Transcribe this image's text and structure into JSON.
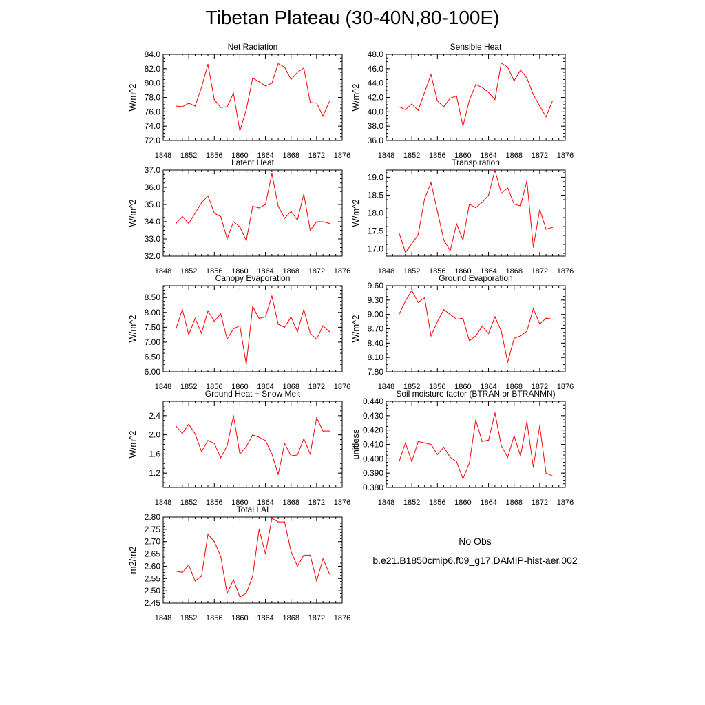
{
  "page": {
    "title": "Tibetan Plateau (30-40N,80-100E)"
  },
  "legend": {
    "items": [
      {
        "label": "No Obs",
        "color": "#3333aa",
        "style": "dashed"
      },
      {
        "label": "b.e21.B1850cmip6.f09_g17.DAMIP-hist-aer.002",
        "color": "#ff0000",
        "style": "solid"
      }
    ]
  },
  "chart_data": [
    {
      "type": "line",
      "title": "Net Radiation",
      "xlabel": "",
      "ylabel": "W/m^2",
      "xlim": [
        1848,
        1876
      ],
      "xticks": [
        "1848",
        "1852",
        "1856",
        "1860",
        "1864",
        "1868",
        "1872",
        "1876"
      ],
      "ylim": [
        72.0,
        84.0
      ],
      "yticks": [
        "72.0",
        "74.0",
        "76.0",
        "78.0",
        "80.0",
        "82.0",
        "84.0"
      ],
      "x": [
        1850,
        1851,
        1852,
        1853,
        1854,
        1855,
        1856,
        1857,
        1858,
        1859,
        1860,
        1861,
        1862,
        1863,
        1864,
        1865,
        1866,
        1867,
        1868,
        1869,
        1870,
        1871,
        1872,
        1873,
        1874
      ],
      "series": [
        {
          "name": "b.e21.B1850cmip6.f09_g17.DAMIP-hist-aer.002",
          "color": "#ff0000",
          "values": [
            76.8,
            76.7,
            77.2,
            76.8,
            79.4,
            82.6,
            77.7,
            76.6,
            76.7,
            78.6,
            73.3,
            76.3,
            80.7,
            80.2,
            79.6,
            80.0,
            82.7,
            82.2,
            80.5,
            81.5,
            82.1,
            77.3,
            77.2,
            75.4,
            77.4
          ]
        }
      ]
    },
    {
      "type": "line",
      "title": "Sensible Heat",
      "xlabel": "",
      "ylabel": "W/m^2",
      "xlim": [
        1848,
        1876
      ],
      "xticks": [
        "1848",
        "1852",
        "1856",
        "1860",
        "1864",
        "1868",
        "1872",
        "1876"
      ],
      "ylim": [
        36.0,
        48.0
      ],
      "yticks": [
        "36.0",
        "38.0",
        "40.0",
        "42.0",
        "44.0",
        "46.0",
        "48.0"
      ],
      "x": [
        1850,
        1851,
        1852,
        1853,
        1854,
        1855,
        1856,
        1857,
        1858,
        1859,
        1860,
        1861,
        1862,
        1863,
        1864,
        1865,
        1866,
        1867,
        1868,
        1869,
        1870,
        1871,
        1872,
        1873,
        1874
      ],
      "series": [
        {
          "name": "b.e21.B1850cmip6.f09_g17.DAMIP-hist-aer.002",
          "color": "#ff0000",
          "values": [
            40.7,
            40.3,
            41.1,
            40.2,
            42.7,
            45.2,
            41.5,
            40.7,
            41.9,
            42.2,
            38.0,
            41.6,
            43.8,
            43.4,
            42.7,
            41.7,
            46.8,
            46.2,
            44.3,
            45.8,
            44.7,
            42.4,
            40.8,
            39.3,
            41.5
          ]
        }
      ]
    },
    {
      "type": "line",
      "title": "Latent Heat",
      "xlabel": "",
      "ylabel": "W/m^2",
      "xlim": [
        1848,
        1876
      ],
      "xticks": [
        "1848",
        "1852",
        "1856",
        "1860",
        "1864",
        "1868",
        "1872",
        "1876"
      ],
      "ylim": [
        32.0,
        37.0
      ],
      "yticks": [
        "32.0",
        "33.0",
        "34.0",
        "35.0",
        "36.0",
        "37.0"
      ],
      "x": [
        1850,
        1851,
        1852,
        1853,
        1854,
        1855,
        1856,
        1857,
        1858,
        1859,
        1860,
        1861,
        1862,
        1863,
        1864,
        1865,
        1866,
        1867,
        1868,
        1869,
        1870,
        1871,
        1872,
        1873,
        1874
      ],
      "series": [
        {
          "name": "b.e21.B1850cmip6.f09_g17.DAMIP-hist-aer.002",
          "color": "#ff0000",
          "values": [
            33.9,
            34.3,
            33.9,
            34.5,
            35.1,
            35.5,
            34.5,
            34.3,
            33.0,
            34.0,
            33.7,
            32.9,
            34.9,
            34.8,
            35.0,
            36.8,
            34.9,
            34.2,
            34.6,
            34.1,
            35.6,
            33.5,
            34.0,
            34.0,
            33.9
          ]
        }
      ]
    },
    {
      "type": "line",
      "title": "Transpiration",
      "xlabel": "",
      "ylabel": "W/m^2",
      "xlim": [
        1848,
        1876
      ],
      "xticks": [
        "1848",
        "1852",
        "1856",
        "1860",
        "1864",
        "1868",
        "1872",
        "1876"
      ],
      "ylim": [
        16.8,
        19.2
      ],
      "yticks": [
        "17.0",
        "17.5",
        "18.0",
        "18.5",
        "19.0"
      ],
      "x": [
        1850,
        1851,
        1852,
        1853,
        1854,
        1855,
        1856,
        1857,
        1858,
        1859,
        1860,
        1861,
        1862,
        1863,
        1864,
        1865,
        1866,
        1867,
        1868,
        1869,
        1870,
        1871,
        1872,
        1873,
        1874
      ],
      "series": [
        {
          "name": "b.e21.B1850cmip6.f09_g17.DAMIP-hist-aer.002",
          "color": "#ff0000",
          "values": [
            17.45,
            16.9,
            17.15,
            17.4,
            18.4,
            18.85,
            18.05,
            17.25,
            16.95,
            17.7,
            17.25,
            18.25,
            18.15,
            18.3,
            18.5,
            19.2,
            18.55,
            18.7,
            18.25,
            18.2,
            18.9,
            17.05,
            18.1,
            17.55,
            17.6
          ]
        }
      ]
    },
    {
      "type": "line",
      "title": "Canopy Evaporation",
      "xlabel": "",
      "ylabel": "W/m^2",
      "xlim": [
        1848,
        1876
      ],
      "xticks": [
        "1848",
        "1852",
        "1856",
        "1860",
        "1864",
        "1868",
        "1872",
        "1876"
      ],
      "ylim": [
        6.0,
        8.9
      ],
      "yticks": [
        "6.00",
        "6.50",
        "7.00",
        "7.50",
        "8.00",
        "8.50"
      ],
      "x": [
        1850,
        1851,
        1852,
        1853,
        1854,
        1855,
        1856,
        1857,
        1858,
        1859,
        1860,
        1861,
        1862,
        1863,
        1864,
        1865,
        1866,
        1867,
        1868,
        1869,
        1870,
        1871,
        1872,
        1873,
        1874
      ],
      "series": [
        {
          "name": "b.e21.B1850cmip6.f09_g17.DAMIP-hist-aer.002",
          "color": "#ff0000",
          "values": [
            7.45,
            8.1,
            7.25,
            7.8,
            7.3,
            8.05,
            7.7,
            7.95,
            7.1,
            7.45,
            7.55,
            6.25,
            8.2,
            7.8,
            7.85,
            8.55,
            7.6,
            7.5,
            7.85,
            7.35,
            8.1,
            7.3,
            7.1,
            7.55,
            7.35
          ]
        }
      ]
    },
    {
      "type": "line",
      "title": "Ground Evaporation",
      "xlabel": "",
      "ylabel": "W/m^2",
      "xlim": [
        1848,
        1876
      ],
      "xticks": [
        "1848",
        "1852",
        "1856",
        "1860",
        "1864",
        "1868",
        "1872",
        "1876"
      ],
      "ylim": [
        7.8,
        9.6
      ],
      "yticks": [
        "7.80",
        "8.10",
        "8.40",
        "8.70",
        "9.00",
        "9.30",
        "9.60"
      ],
      "x": [
        1850,
        1851,
        1852,
        1853,
        1854,
        1855,
        1856,
        1857,
        1858,
        1859,
        1860,
        1861,
        1862,
        1863,
        1864,
        1865,
        1866,
        1867,
        1868,
        1869,
        1870,
        1871,
        1872,
        1873,
        1874
      ],
      "series": [
        {
          "name": "b.e21.B1850cmip6.f09_g17.DAMIP-hist-aer.002",
          "color": "#ff0000",
          "values": [
            9.0,
            9.28,
            9.5,
            9.25,
            9.35,
            8.55,
            8.85,
            9.1,
            9.0,
            8.9,
            8.92,
            8.45,
            8.55,
            8.75,
            8.6,
            8.95,
            8.65,
            8.0,
            8.5,
            8.55,
            8.65,
            9.12,
            8.8,
            8.92,
            8.9
          ]
        }
      ]
    },
    {
      "type": "line",
      "title": "Ground Heat + Snow Melt",
      "xlabel": "",
      "ylabel": "W/m^2",
      "xlim": [
        1848,
        1876
      ],
      "xticks": [
        "1848",
        "1852",
        "1856",
        "1860",
        "1864",
        "1868",
        "1872",
        "1876"
      ],
      "ylim": [
        0.9,
        2.7
      ],
      "yticks": [
        "1.2",
        "1.6",
        "2.0",
        "2.4"
      ],
      "x": [
        1850,
        1851,
        1852,
        1853,
        1854,
        1855,
        1856,
        1857,
        1858,
        1859,
        1860,
        1861,
        1862,
        1863,
        1864,
        1865,
        1866,
        1867,
        1868,
        1869,
        1870,
        1871,
        1872,
        1873,
        1874
      ],
      "series": [
        {
          "name": "b.e21.B1850cmip6.f09_g17.DAMIP-hist-aer.002",
          "color": "#ff0000",
          "values": [
            2.18,
            2.03,
            2.22,
            2.02,
            1.65,
            1.88,
            1.82,
            1.52,
            1.77,
            2.4,
            1.6,
            1.75,
            2.0,
            1.95,
            1.88,
            1.6,
            1.17,
            1.82,
            1.56,
            1.58,
            1.92,
            1.6,
            2.36,
            2.08,
            2.08
          ]
        }
      ]
    },
    {
      "type": "line",
      "title": "Soil moisture factor (BTRAN or BTRANMN)",
      "xlabel": "",
      "ylabel": "unitless",
      "xlim": [
        1848,
        1876
      ],
      "xticks": [
        "1848",
        "1852",
        "1856",
        "1860",
        "1864",
        "1868",
        "1872",
        "1876"
      ],
      "ylim": [
        0.38,
        0.44
      ],
      "yticks": [
        "0.380",
        "0.390",
        "0.400",
        "0.410",
        "0.420",
        "0.430",
        "0.440"
      ],
      "x": [
        1850,
        1851,
        1852,
        1853,
        1854,
        1855,
        1856,
        1857,
        1858,
        1859,
        1860,
        1861,
        1862,
        1863,
        1864,
        1865,
        1866,
        1867,
        1868,
        1869,
        1870,
        1871,
        1872,
        1873,
        1874
      ],
      "series": [
        {
          "name": "b.e21.B1850cmip6.f09_g17.DAMIP-hist-aer.002",
          "color": "#ff0000",
          "values": [
            0.398,
            0.411,
            0.398,
            0.412,
            0.411,
            0.41,
            0.403,
            0.408,
            0.401,
            0.398,
            0.386,
            0.397,
            0.427,
            0.412,
            0.413,
            0.432,
            0.409,
            0.401,
            0.416,
            0.402,
            0.426,
            0.394,
            0.423,
            0.39,
            0.388
          ]
        }
      ]
    },
    {
      "type": "line",
      "title": "Total LAI",
      "xlabel": "",
      "ylabel": "m2/m2",
      "xlim": [
        1848,
        1876
      ],
      "xticks": [
        "1848",
        "1852",
        "1856",
        "1860",
        "1864",
        "1868",
        "1872",
        "1876"
      ],
      "ylim": [
        2.45,
        2.8
      ],
      "yticks": [
        "2.45",
        "2.50",
        "2.55",
        "2.60",
        "2.65",
        "2.70",
        "2.75",
        "2.80"
      ],
      "x": [
        1850,
        1851,
        1852,
        1853,
        1854,
        1855,
        1856,
        1857,
        1858,
        1859,
        1860,
        1861,
        1862,
        1863,
        1864,
        1865,
        1866,
        1867,
        1868,
        1869,
        1870,
        1871,
        1872,
        1873,
        1874
      ],
      "series": [
        {
          "name": "b.e21.B1850cmip6.f09_g17.DAMIP-hist-aer.002",
          "color": "#ff0000",
          "values": [
            2.58,
            2.575,
            2.605,
            2.54,
            2.56,
            2.73,
            2.7,
            2.64,
            2.49,
            2.545,
            2.475,
            2.49,
            2.56,
            2.75,
            2.65,
            2.795,
            2.78,
            2.78,
            2.66,
            2.6,
            2.645,
            2.645,
            2.54,
            2.63,
            2.57
          ]
        }
      ]
    }
  ]
}
